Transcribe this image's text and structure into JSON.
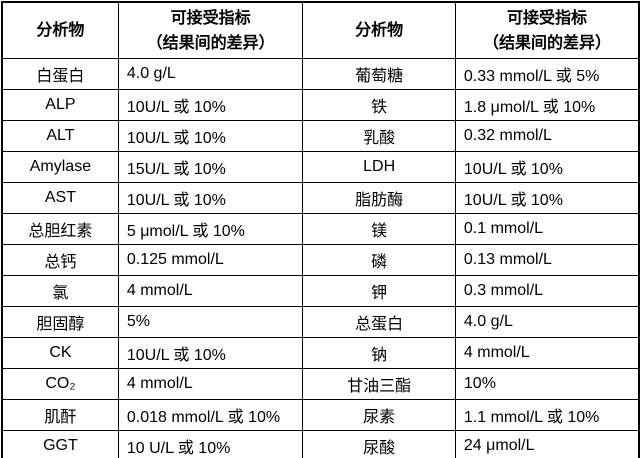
{
  "colors": {
    "border": "#000000",
    "text": "#000000",
    "background": "#ffffff"
  },
  "table": {
    "header": {
      "analyte_label": "分析物",
      "indicator_line1": "可接受指标",
      "indicator_line2": "（结果间的差异）"
    },
    "rows": [
      {
        "left": {
          "analyte": "白蛋白",
          "value": "4.0 g/L"
        },
        "right": {
          "analyte": "葡萄糖",
          "value": "0.33 mmol/L 或 5%"
        }
      },
      {
        "left": {
          "analyte": "ALP",
          "value": "10U/L 或 10%"
        },
        "right": {
          "analyte": "铁",
          "value": "1.8 μmol/L 或 10%"
        }
      },
      {
        "left": {
          "analyte": "ALT",
          "value": "10U/L 或 10%"
        },
        "right": {
          "analyte": "乳酸",
          "value": "0.32 mmol/L"
        }
      },
      {
        "left": {
          "analyte": "Amylase",
          "value": "15U/L 或 10%"
        },
        "right": {
          "analyte": "LDH",
          "value": "10U/L 或 10%"
        }
      },
      {
        "left": {
          "analyte": "AST",
          "value": "10U/L 或 10%"
        },
        "right": {
          "analyte": "脂肪酶",
          "value": "10U/L 或 10%"
        }
      },
      {
        "left": {
          "analyte": "总胆红素",
          "value": "5 μmol/L 或 10%"
        },
        "right": {
          "analyte": "镁",
          "value": "0.1 mmol/L"
        }
      },
      {
        "left": {
          "analyte": "总钙",
          "value": "0.125 mmol/L"
        },
        "right": {
          "analyte": "磷",
          "value": "0.13 mmol/L"
        }
      },
      {
        "left": {
          "analyte": "氯",
          "value": "4 mmol/L"
        },
        "right": {
          "analyte": "钾",
          "value": "0.3 mmol/L"
        }
      },
      {
        "left": {
          "analyte": "胆固醇",
          "value": "5%"
        },
        "right": {
          "analyte": "总蛋白",
          "value": "4.0 g/L"
        }
      },
      {
        "left": {
          "analyte": "CK",
          "value": "10U/L 或 10%"
        },
        "right": {
          "analyte": "钠",
          "value": "4 mmol/L"
        }
      },
      {
        "left": {
          "analyte": "CO₂",
          "value": "4 mmol/L"
        },
        "right": {
          "analyte": "甘油三酯",
          "value": "10%"
        }
      },
      {
        "left": {
          "analyte": "肌酐",
          "value": "0.018 mmol/L 或 10%"
        },
        "right": {
          "analyte": "尿素",
          "value": "1.1 mmol/L 或 10%"
        }
      },
      {
        "left": {
          "analyte": "GGT",
          "value": "10 U/L 或 10%"
        },
        "right": {
          "analyte": "尿酸",
          "value": "24 μmol/L"
        }
      }
    ]
  }
}
